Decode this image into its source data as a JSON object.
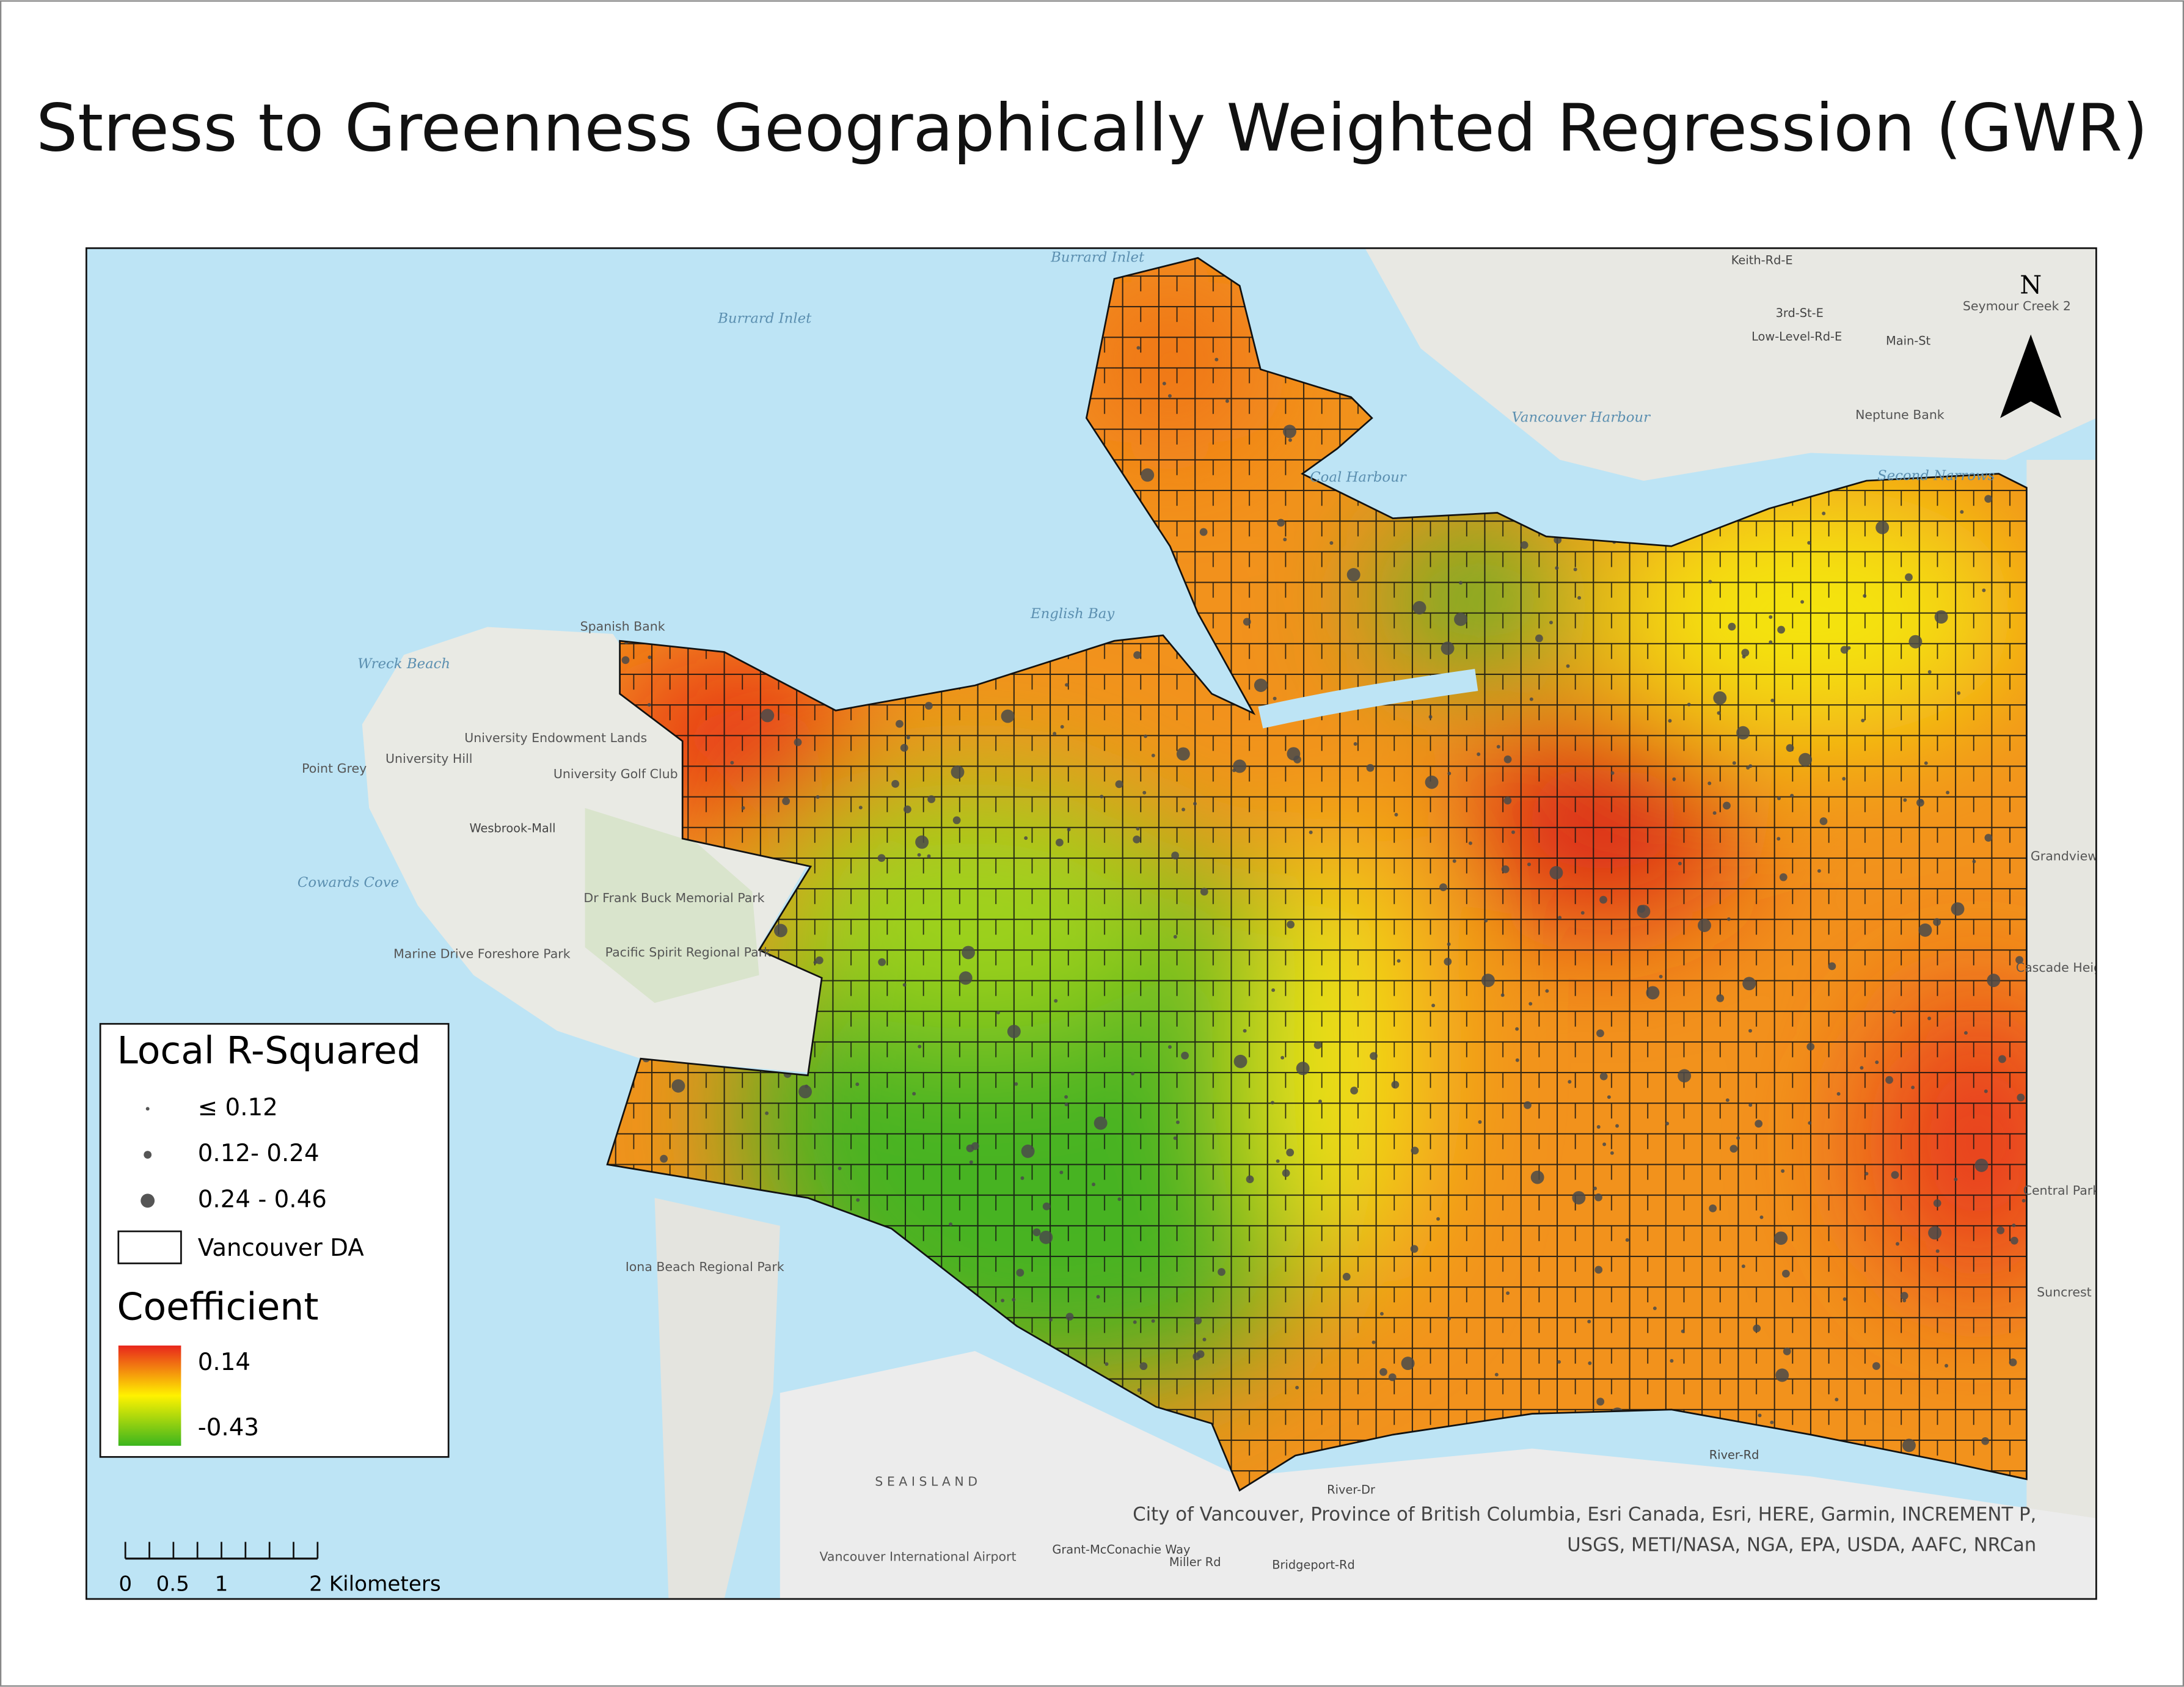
{
  "title": "Stress to Greenness Geographically Weighted Regression (GWR)",
  "legend": {
    "points_title": "Local R-Squared",
    "points": [
      "≤ 0.12",
      "0.12- 0.24",
      "0.24 - 0.46"
    ],
    "boundary": "Vancouver DA",
    "coefficient_title": "Coefficient",
    "coefficient_high": "0.14",
    "coefficient_low": "-0.43"
  },
  "scale_bar": [
    "0",
    "0.5",
    "1",
    "2 Kilometers"
  ],
  "north_arrow": "N",
  "attribution": [
    "City of Vancouver, Province of British Columbia, Esri Canada, Esri, HERE, Garmin, INCREMENT P,",
    "USGS, METI/NASA, NGA, EPA, USDA, AAFC, NRCan"
  ],
  "place_labels": [
    "Burrard Inlet",
    "Burrard Inlet",
    "English Bay",
    "Coal Harbour",
    "Vancouver Harbour",
    "Second Narrows",
    "Wreck Beach",
    "Cowards Cove",
    "Spanish Bank",
    "University Hill",
    "University Endowment Lands",
    "University Golf Club",
    "Point Grey",
    "Dr Frank Buck Memorial Park",
    "Pacific Spirit Regional Park",
    "Marine Drive Foreshore Park",
    "Iona Beach Regional Park",
    "S E A   I S L A N D",
    "Vancouver International Airport",
    "Neptune Bank",
    "Keith-Rd-E",
    "3rd-St-E",
    "Low-Level-Rd-E",
    "Main-St",
    "River-Rd",
    "River-Dr",
    "Bridgeport-Rd",
    "Miller Rd",
    "Grant-McConachie Way",
    "Seymour Creek 2",
    "Grandview",
    "Cascade Heights",
    "Central Park",
    "Suncrest",
    "Wesbrook-Mall"
  ]
}
